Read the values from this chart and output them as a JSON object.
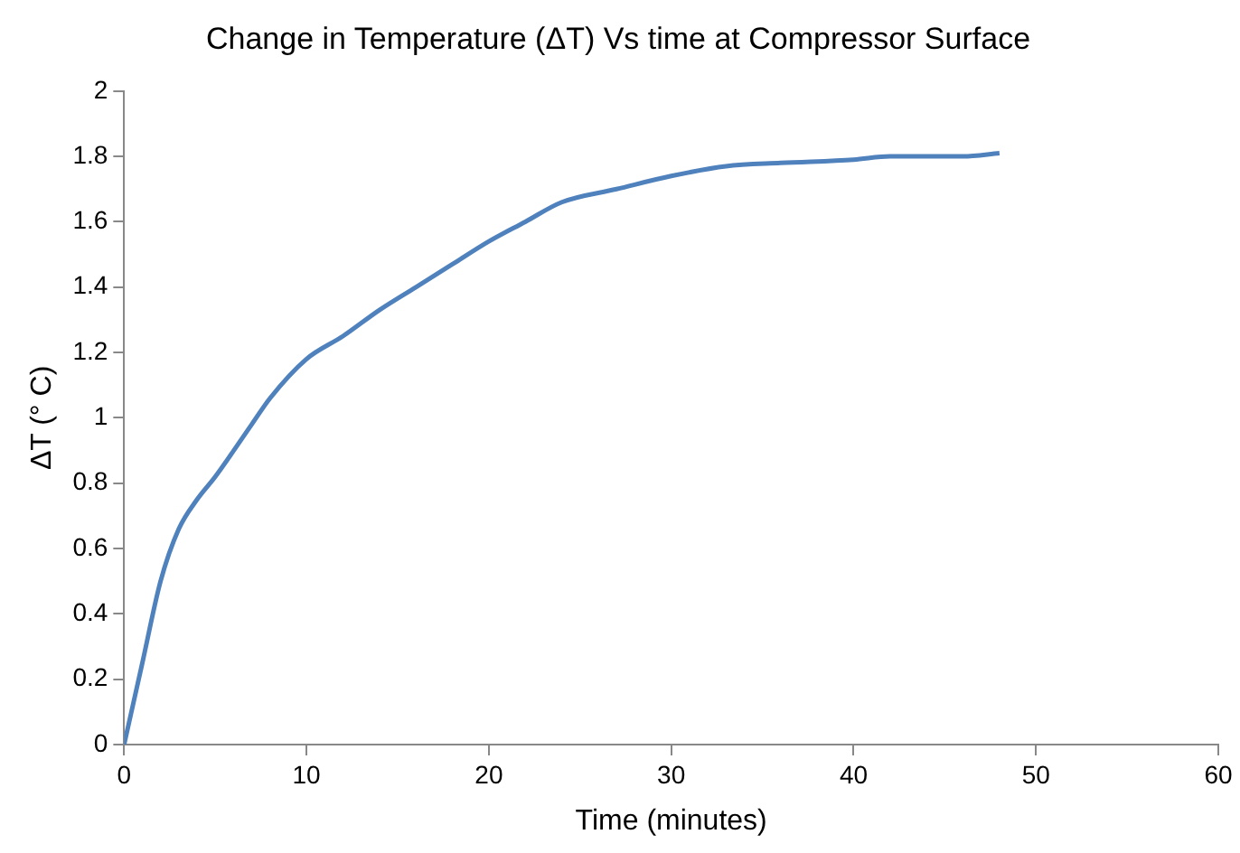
{
  "chart_data": {
    "type": "line",
    "title": "Change in Temperature (ΔT) Vs time at Compressor Surface",
    "xlabel": "Time (minutes)",
    "ylabel": "ΔT (° C)",
    "x": [
      0,
      1,
      2,
      3,
      4,
      5,
      7,
      8,
      10,
      12,
      14,
      16,
      18,
      20,
      22,
      24,
      27,
      30,
      33,
      36,
      40,
      42,
      44,
      46,
      48
    ],
    "series": [
      {
        "color": "#4f81bd",
        "values": [
          0,
          0.25,
          0.5,
          0.66,
          0.75,
          0.82,
          0.98,
          1.06,
          1.18,
          1.25,
          1.33,
          1.4,
          1.47,
          1.54,
          1.6,
          1.66,
          1.7,
          1.74,
          1.77,
          1.78,
          1.79,
          1.8,
          1.8,
          1.8,
          1.81
        ]
      }
    ],
    "xlim": [
      0,
      60
    ],
    "xticks": [
      0,
      10,
      20,
      30,
      40,
      50,
      60
    ],
    "ylim": [
      0,
      2
    ],
    "yticks": [
      0,
      0.2,
      0.4,
      0.6,
      0.8,
      1,
      1.2,
      1.4,
      1.6,
      1.8,
      2
    ],
    "grid": false,
    "legend": false,
    "marker": "none",
    "line_style": "solid"
  }
}
